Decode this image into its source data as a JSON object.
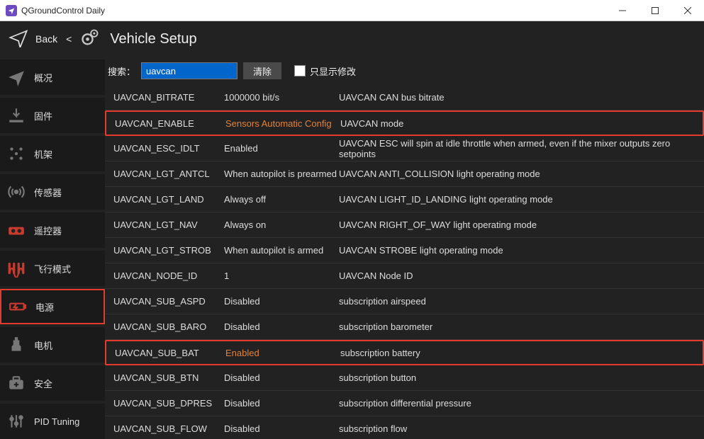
{
  "window": {
    "title": "QGroundControl Daily"
  },
  "header": {
    "back": "Back",
    "chevron": "<",
    "title": "Vehicle Setup"
  },
  "sidebar": {
    "items": [
      {
        "label": "概况",
        "icon": "plane",
        "highlight": false
      },
      {
        "label": "固件",
        "icon": "download",
        "highlight": false
      },
      {
        "label": "机架",
        "icon": "dots",
        "highlight": false
      },
      {
        "label": "传感器",
        "icon": "broadcast",
        "highlight": false
      },
      {
        "label": "遥控器",
        "icon": "rc",
        "highlight": false
      },
      {
        "label": "飞行模式",
        "icon": "wave",
        "highlight": false
      },
      {
        "label": "电源",
        "icon": "battery",
        "highlight": true
      },
      {
        "label": "电机",
        "icon": "motor",
        "highlight": false
      },
      {
        "label": "安全",
        "icon": "medkit",
        "highlight": false
      },
      {
        "label": "PID Tuning",
        "icon": "sliders",
        "highlight": false
      }
    ]
  },
  "search": {
    "label": "搜索：",
    "value": "uavcan",
    "clear": "清除",
    "show_modified_label": "只显示修改"
  },
  "params": [
    {
      "name": "UAVCAN_BITRATE",
      "value": "1000000 bit/s",
      "desc": "UAVCAN CAN bus bitrate",
      "highlight": false,
      "changed": false
    },
    {
      "name": "UAVCAN_ENABLE",
      "value": "Sensors Automatic Config",
      "desc": "UAVCAN mode",
      "highlight": true,
      "changed": true
    },
    {
      "name": "UAVCAN_ESC_IDLT",
      "value": "Enabled",
      "desc": "UAVCAN ESC will spin at idle throttle when armed, even if the mixer outputs zero setpoints",
      "highlight": false,
      "changed": false
    },
    {
      "name": "UAVCAN_LGT_ANTCL",
      "value": "When autopilot is prearmed",
      "desc": "UAVCAN ANTI_COLLISION light operating mode",
      "highlight": false,
      "changed": false
    },
    {
      "name": "UAVCAN_LGT_LAND",
      "value": "Always off",
      "desc": "UAVCAN LIGHT_ID_LANDING light operating mode",
      "highlight": false,
      "changed": false
    },
    {
      "name": "UAVCAN_LGT_NAV",
      "value": "Always on",
      "desc": "UAVCAN RIGHT_OF_WAY light operating mode",
      "highlight": false,
      "changed": false
    },
    {
      "name": "UAVCAN_LGT_STROB",
      "value": "When autopilot is armed",
      "desc": "UAVCAN STROBE light operating mode",
      "highlight": false,
      "changed": false
    },
    {
      "name": "UAVCAN_NODE_ID",
      "value": "1",
      "desc": "UAVCAN Node ID",
      "highlight": false,
      "changed": false
    },
    {
      "name": "UAVCAN_SUB_ASPD",
      "value": "Disabled",
      "desc": "subscription airspeed",
      "highlight": false,
      "changed": false
    },
    {
      "name": "UAVCAN_SUB_BARO",
      "value": "Disabled",
      "desc": "subscription barometer",
      "highlight": false,
      "changed": false
    },
    {
      "name": "UAVCAN_SUB_BAT",
      "value": "Enabled",
      "desc": "subscription battery",
      "highlight": true,
      "changed": true
    },
    {
      "name": "UAVCAN_SUB_BTN",
      "value": "Disabled",
      "desc": "subscription button",
      "highlight": false,
      "changed": false
    },
    {
      "name": "UAVCAN_SUB_DPRES",
      "value": "Disabled",
      "desc": "subscription differential pressure",
      "highlight": false,
      "changed": false
    },
    {
      "name": "UAVCAN_SUB_FLOW",
      "value": "Disabled",
      "desc": "subscription flow",
      "highlight": false,
      "changed": false
    }
  ]
}
